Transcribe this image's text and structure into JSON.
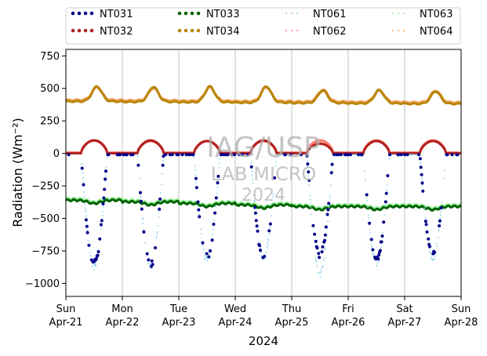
{
  "chart_data": {
    "type": "scatter",
    "title": "",
    "xlabel": "2024",
    "ylabel": "Radiation (Wm⁻²)",
    "ylim": [
      -1100,
      800
    ],
    "yticks": [
      -1000,
      -750,
      -500,
      -250,
      0,
      250,
      500,
      750
    ],
    "xrange": [
      "2024-04-21",
      "2024-04-28"
    ],
    "xticks": [
      {
        "day": "Sun",
        "date": "Apr-21"
      },
      {
        "day": "Mon",
        "date": "Apr-22"
      },
      {
        "day": "Tue",
        "date": "Apr-23"
      },
      {
        "day": "Wed",
        "date": "Apr-24"
      },
      {
        "day": "Thu",
        "date": "Apr-25"
      },
      {
        "day": "Fri",
        "date": "Apr-26"
      },
      {
        "day": "Sat",
        "date": "Apr-27"
      },
      {
        "day": "Sun",
        "date": "Apr-28"
      }
    ],
    "grid": "vertical",
    "legend": {
      "placement": "top",
      "columns": 4
    },
    "watermark": [
      "IAG/USP",
      "LAB MICRO",
      "2024"
    ],
    "series": [
      {
        "name": "NT031",
        "color": "#00008b",
        "style": "dots",
        "kind": "net_shortwave",
        "base": -10,
        "daily_peak": [
          -850,
          -860,
          -800,
          -790,
          -780,
          -820,
          -780
        ]
      },
      {
        "name": "NT032",
        "color": "#b22222",
        "style": "dots",
        "kind": "shortwave_up",
        "base": 0,
        "daily_peak": [
          100,
          100,
          95,
          100,
          75,
          95,
          95
        ]
      },
      {
        "name": "NT033",
        "color": "#006400",
        "style": "dots",
        "kind": "longwave_net",
        "base": -360
      },
      {
        "name": "NT034",
        "color": "#b8860b",
        "style": "dots",
        "kind": "longwave_down",
        "base": 400,
        "daily_peak": [
          515,
          515,
          520,
          525,
          495,
          500,
          495
        ]
      },
      {
        "name": "NT061",
        "color": "#87ceeb",
        "style": "sparse",
        "kind": "net_shortwave",
        "base": -10,
        "daily_peak": [
          -880,
          -870,
          -820,
          -800,
          -930,
          -840,
          -800
        ]
      },
      {
        "name": "NT062",
        "color": "#fa8072",
        "style": "sparse",
        "kind": "shortwave_up",
        "base": 5,
        "daily_peak": [
          100,
          95,
          95,
          95,
          100,
          100,
          100
        ]
      },
      {
        "name": "NT063",
        "color": "#90ee90",
        "style": "sparse",
        "kind": "longwave_net",
        "base": -350
      },
      {
        "name": "NT064",
        "color": "#f4a460",
        "style": "sparse",
        "kind": "longwave_down",
        "base": 410,
        "daily_peak": [
          510,
          505,
          515,
          520,
          500,
          500,
          500
        ]
      }
    ]
  }
}
